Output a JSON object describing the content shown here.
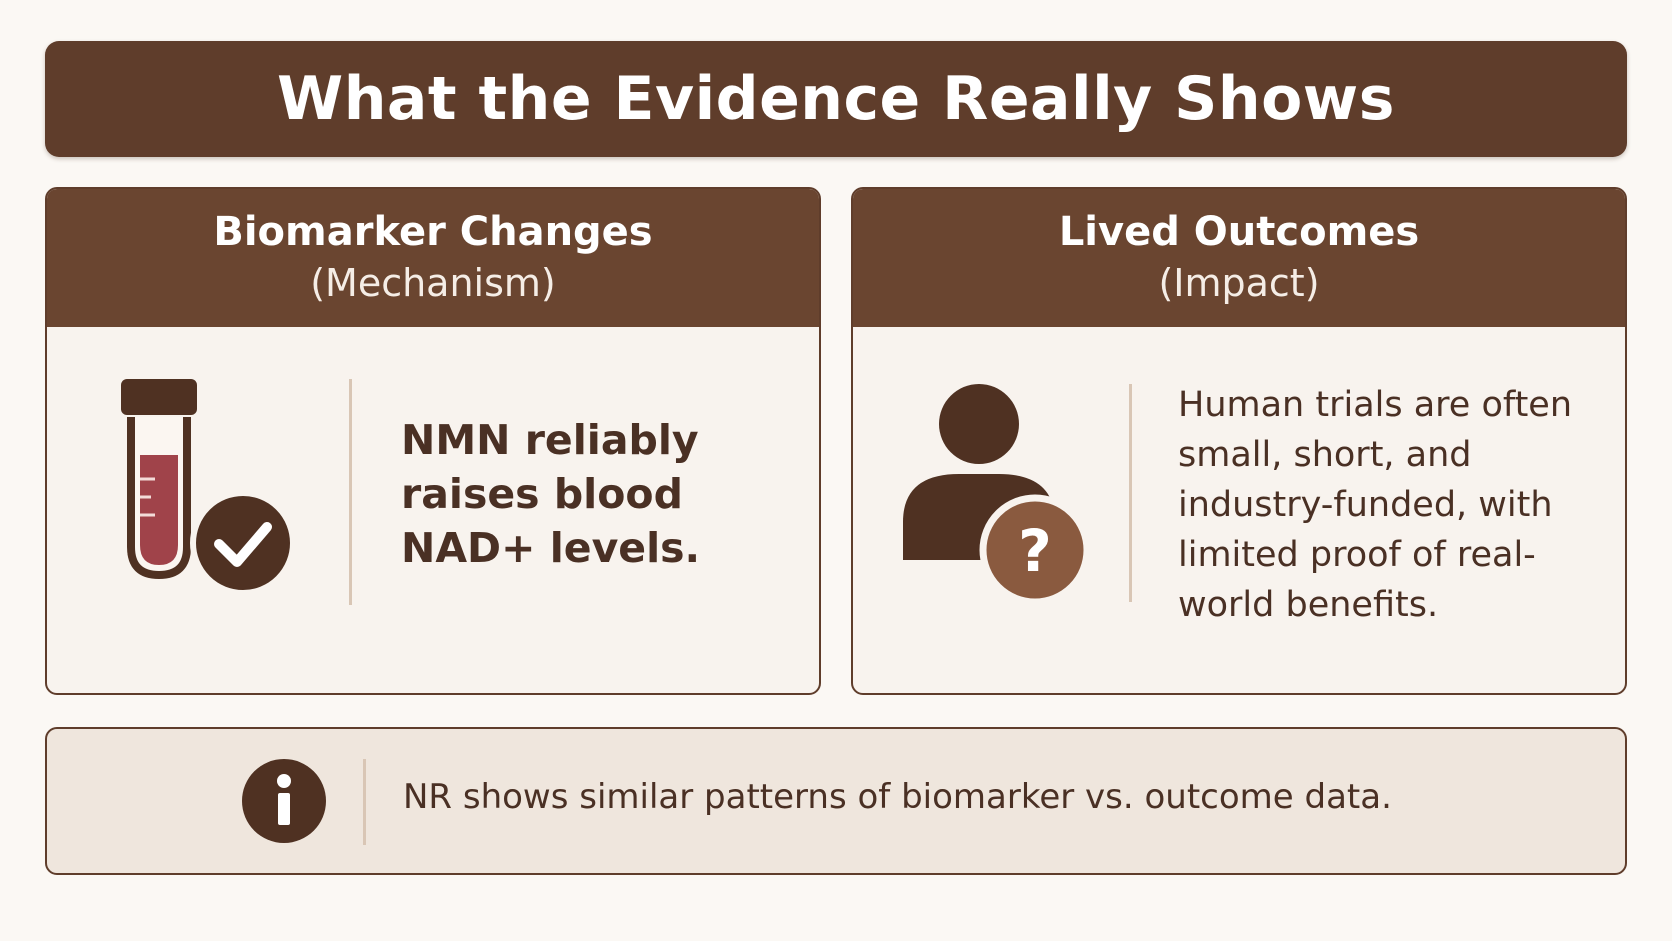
{
  "title": "What the Evidence Really Shows",
  "cards": [
    {
      "title": "Biomarker Changes",
      "subtitle": "(Mechanism)",
      "icon": "test-tube-check-icon",
      "text_lines": [
        "NMN reliably",
        "raises blood",
        "NAD+ levels."
      ]
    },
    {
      "title": "Lived Outcomes",
      "subtitle": "(Impact)",
      "icon": "person-question-icon",
      "text_lines": [
        "Human trials are often",
        "small, short, and",
        "industry-funded, with",
        "limited proof of real-",
        "world benefits."
      ]
    }
  ],
  "note": {
    "icon": "info-icon",
    "text": "NR shows similar patterns of biomarker vs. outcome data."
  },
  "colors": {
    "header_brown": "#5f3d2b",
    "card_header_brown": "#6a4530",
    "icon_brown": "#4f3122",
    "accent_medium_brown": "#8a5a3f",
    "blood_red": "#a0434a",
    "body_background": "#f8f3ee",
    "note_background": "#efe6dd"
  }
}
